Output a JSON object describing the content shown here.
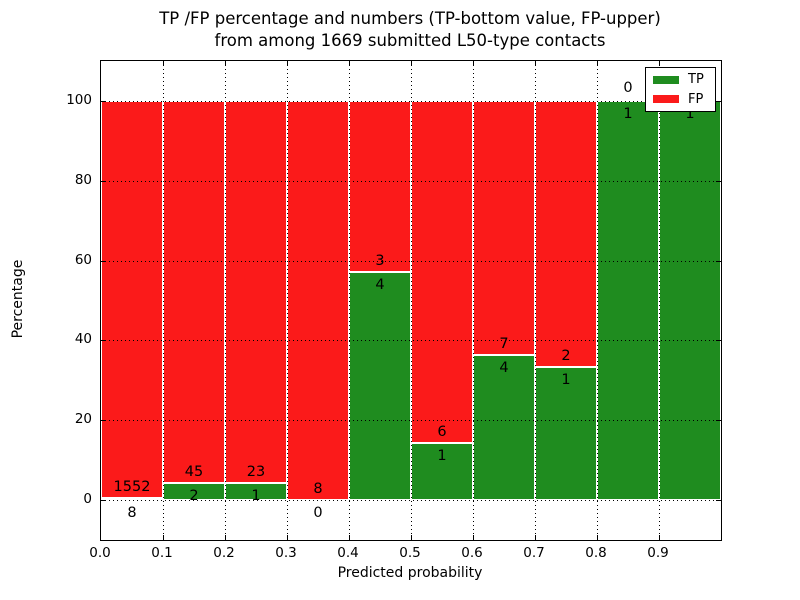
{
  "header": {
    "line1": "TP /FP percentage and numbers (TP-bottom value, FP-upper)",
    "line2": "from among 1669 submitted L50-type contacts"
  },
  "axes": {
    "xlabel": "Predicted probability",
    "ylabel": "Percentage",
    "x_tick_labels": [
      "0.0",
      "0.1",
      "0.2",
      "0.3",
      "0.4",
      "0.5",
      "0.6",
      "0.7",
      "0.8",
      "0.9"
    ],
    "y_tick_labels": [
      "0",
      "20",
      "40",
      "60",
      "80",
      "100"
    ],
    "y_ticks": [
      0,
      20,
      40,
      60,
      80,
      100
    ]
  },
  "legend": {
    "items": [
      {
        "label": "TP",
        "color_key": "tp"
      },
      {
        "label": "FP",
        "color_key": "fp"
      }
    ]
  },
  "colors": {
    "tp": "#1f8c1f",
    "fp": "#fb1a1a",
    "bar_edge": "#ffffff",
    "grid": "#000000"
  },
  "chart_data": {
    "type": "bar",
    "variant": "stacked-percentage",
    "title": "TP /FP percentage and numbers (TP-bottom value, FP-upper) from among 1669 submitted L50-type contacts",
    "xlabel": "Predicted probability",
    "ylabel": "Percentage",
    "xlim": [
      0.0,
      1.0
    ],
    "ylim": [
      -10,
      110
    ],
    "grid": true,
    "legend_position": "upper right",
    "total_contacts": 1669,
    "series": [
      {
        "name": "TP",
        "color": "#1f8c1f",
        "position": "bottom"
      },
      {
        "name": "FP",
        "color": "#fb1a1a",
        "position": "top"
      }
    ],
    "bins": [
      {
        "range": [
          0.0,
          0.1
        ],
        "tp": 8,
        "fp": 1552,
        "tp_pct": 0.51
      },
      {
        "range": [
          0.1,
          0.2
        ],
        "tp": 2,
        "fp": 45,
        "tp_pct": 4.26
      },
      {
        "range": [
          0.2,
          0.3
        ],
        "tp": 1,
        "fp": 23,
        "tp_pct": 4.17
      },
      {
        "range": [
          0.3,
          0.4
        ],
        "tp": 0,
        "fp": 8,
        "tp_pct": 0.0
      },
      {
        "range": [
          0.4,
          0.5
        ],
        "tp": 4,
        "fp": 3,
        "tp_pct": 57.1
      },
      {
        "range": [
          0.5,
          0.6
        ],
        "tp": 1,
        "fp": 6,
        "tp_pct": 14.3
      },
      {
        "range": [
          0.6,
          0.7
        ],
        "tp": 4,
        "fp": 7,
        "tp_pct": 36.4
      },
      {
        "range": [
          0.7,
          0.8
        ],
        "tp": 1,
        "fp": 2,
        "tp_pct": 33.3
      },
      {
        "range": [
          0.8,
          0.9
        ],
        "tp": 1,
        "fp": 0,
        "tp_pct": 100
      },
      {
        "range": [
          0.9,
          1.0
        ],
        "tp": 1,
        "fp": 0,
        "tp_pct": 100,
        "fp_label_hidden": true
      }
    ]
  }
}
